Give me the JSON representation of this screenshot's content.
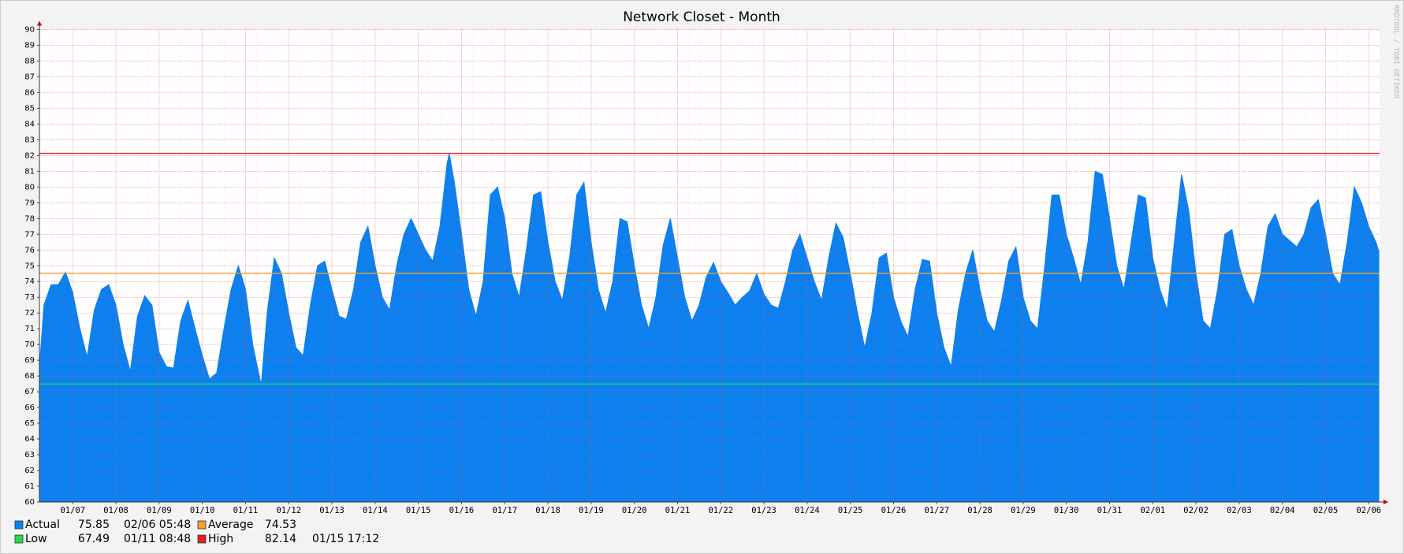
{
  "chart_data": {
    "type": "area",
    "title": "Network Closet - Month",
    "watermark": "RRDTOOL / TOBI OETIKER",
    "x": [
      "01/06 05:30",
      "01/06 08:00",
      "01/06 12:00",
      "01/06 16:00",
      "01/06 20:00",
      "01/07 00:00",
      "01/07 04:00",
      "01/07 08:00",
      "01/07 12:00",
      "01/07 16:00",
      "01/07 20:00",
      "01/08 00:00",
      "01/08 04:00",
      "01/08 08:00",
      "01/08 12:00",
      "01/08 16:00",
      "01/08 20:00",
      "01/09 00:00",
      "01/09 04:00",
      "01/09 08:00",
      "01/09 12:00",
      "01/09 16:00",
      "01/09 20:00",
      "01/10 00:00",
      "01/10 04:00",
      "01/10 08:00",
      "01/10 12:00",
      "01/10 16:00",
      "01/10 20:00",
      "01/11 00:00",
      "01/11 04:00",
      "01/11 08:00",
      "01/11 08:48",
      "01/11 12:00",
      "01/11 16:00",
      "01/11 20:00",
      "01/12 00:00",
      "01/12 04:00",
      "01/12 08:00",
      "01/12 12:00",
      "01/12 16:00",
      "01/12 20:00",
      "01/13 00:00",
      "01/13 04:00",
      "01/13 08:00",
      "01/13 12:00",
      "01/13 16:00",
      "01/13 20:00",
      "01/14 00:00",
      "01/14 04:00",
      "01/14 08:00",
      "01/14 12:00",
      "01/14 16:00",
      "01/14 20:00",
      "01/15 00:00",
      "01/15 04:00",
      "01/15 08:00",
      "01/15 12:00",
      "01/15 16:00",
      "01/15 17:12",
      "01/15 20:00",
      "01/16 00:00",
      "01/16 04:00",
      "01/16 08:00",
      "01/16 12:00",
      "01/16 16:00",
      "01/16 20:00",
      "01/17 00:00",
      "01/17 04:00",
      "01/17 08:00",
      "01/17 12:00",
      "01/17 16:00",
      "01/17 20:00",
      "01/18 00:00",
      "01/18 04:00",
      "01/18 08:00",
      "01/18 12:00",
      "01/18 16:00",
      "01/18 20:00",
      "01/19 00:00",
      "01/19 04:00",
      "01/19 08:00",
      "01/19 12:00",
      "01/19 16:00",
      "01/19 20:00",
      "01/20 00:00",
      "01/20 04:00",
      "01/20 08:00",
      "01/20 12:00",
      "01/20 16:00",
      "01/20 20:00",
      "01/21 00:00",
      "01/21 04:00",
      "01/21 08:00",
      "01/21 12:00",
      "01/21 16:00",
      "01/21 20:00",
      "01/22 00:00",
      "01/22 04:00",
      "01/22 08:00",
      "01/22 12:00",
      "01/22 16:00",
      "01/22 20:00",
      "01/23 00:00",
      "01/23 04:00",
      "01/23 08:00",
      "01/23 12:00",
      "01/23 16:00",
      "01/23 20:00",
      "01/24 00:00",
      "01/24 04:00",
      "01/24 08:00",
      "01/24 12:00",
      "01/24 16:00",
      "01/24 20:00",
      "01/25 00:00",
      "01/25 04:00",
      "01/25 08:00",
      "01/25 12:00",
      "01/25 16:00",
      "01/25 20:00",
      "01/26 00:00",
      "01/26 04:00",
      "01/26 08:00",
      "01/26 12:00",
      "01/26 16:00",
      "01/26 20:00",
      "01/27 00:00",
      "01/27 04:00",
      "01/27 08:00",
      "01/27 12:00",
      "01/27 16:00",
      "01/27 20:00",
      "01/28 00:00",
      "01/28 04:00",
      "01/28 08:00",
      "01/28 12:00",
      "01/28 16:00",
      "01/28 20:00",
      "01/29 00:00",
      "01/29 04:00",
      "01/29 08:00",
      "01/29 12:00",
      "01/29 16:00",
      "01/29 20:00",
      "01/30 00:00",
      "01/30 04:00",
      "01/30 08:00",
      "01/30 12:00",
      "01/30 16:00",
      "01/30 20:00",
      "01/31 00:00",
      "01/31 04:00",
      "01/31 08:00",
      "01/31 12:00",
      "01/31 16:00",
      "01/31 20:00",
      "02/01 00:00",
      "02/01 04:00",
      "02/01 08:00",
      "02/01 12:00",
      "02/01 16:00",
      "02/01 20:00",
      "02/02 00:00",
      "02/02 04:00",
      "02/02 08:00",
      "02/02 12:00",
      "02/02 16:00",
      "02/02 20:00",
      "02/03 00:00",
      "02/03 04:00",
      "02/03 08:00",
      "02/03 12:00",
      "02/03 16:00",
      "02/03 20:00",
      "02/04 00:00",
      "02/04 04:00",
      "02/04 08:00",
      "02/04 12:00",
      "02/04 16:00",
      "02/04 20:00",
      "02/05 00:00",
      "02/05 04:00",
      "02/05 08:00",
      "02/05 12:00",
      "02/05 16:00",
      "02/05 20:00",
      "02/06 00:00",
      "02/06 04:00",
      "02/06 05:48"
    ],
    "series": [
      {
        "name": "Actual",
        "color": "#0b80f0",
        "current": 75.85,
        "current_time": "02/06 05:48",
        "values": [
          68.5,
          72.5,
          73.8,
          73.8,
          74.6,
          73.3,
          71,
          69.2,
          72.2,
          73.5,
          73.8,
          72.5,
          70,
          68.3,
          71.8,
          73.1,
          72.5,
          69.5,
          68.6,
          68.5,
          71.5,
          72.8,
          71,
          69.3,
          67.8,
          68.2,
          71,
          73.5,
          75,
          73.5,
          70,
          67.8,
          67.49,
          72,
          75.5,
          74.5,
          72,
          69.8,
          69.3,
          72.5,
          75,
          75.3,
          73.5,
          71.8,
          71.6,
          73.5,
          76.5,
          77.5,
          75,
          73,
          72.2,
          75,
          77,
          78,
          77,
          76,
          75.3,
          77.5,
          81.5,
          82.14,
          80.3,
          77,
          73.5,
          71.8,
          74,
          79.5,
          80,
          78,
          74.5,
          73,
          76,
          79.5,
          79.7,
          76.5,
          74,
          72.8,
          75.5,
          79.5,
          80.3,
          76.5,
          73.5,
          72,
          74,
          78,
          77.8,
          75,
          72.5,
          71,
          73,
          76.3,
          78,
          75.5,
          73,
          71.5,
          72.5,
          74.3,
          75.2,
          74,
          73.3,
          72.5,
          73,
          73.4,
          74.5,
          73.2,
          72.5,
          72.3,
          74,
          76,
          77,
          75.5,
          74,
          72.8,
          75.5,
          77.7,
          76.8,
          74.5,
          72,
          69.8,
          72,
          75.5,
          75.8,
          73,
          71.5,
          70.5,
          73.5,
          75.4,
          75.3,
          72,
          69.8,
          68.6,
          72.2,
          74.5,
          76,
          73.5,
          71.5,
          70.8,
          72.8,
          75.3,
          76.2,
          73,
          71.5,
          71,
          75,
          79.5,
          79.5,
          77,
          75.5,
          73.8,
          76.5,
          81,
          80.8,
          78,
          75,
          73.5,
          76.5,
          79.5,
          79.3,
          75.5,
          73.5,
          72.2,
          76.5,
          80.8,
          78.5,
          74.5,
          71.5,
          71,
          73.5,
          77,
          77.3,
          75,
          73.5,
          72.5,
          74.5,
          77.5,
          78.3,
          77,
          76.6,
          76.2,
          77,
          78.7,
          79.2,
          77,
          74.5,
          73.8,
          76.5,
          80,
          79,
          77.5,
          76.5,
          75.85
        ]
      }
    ],
    "hrules": [
      {
        "name": "Average",
        "color": "#f0a030",
        "value": 74.53
      },
      {
        "name": "Low",
        "color": "#22dd44",
        "value": 67.49,
        "time": "01/11 08:48"
      },
      {
        "name": "High",
        "color": "#e02020",
        "value": 82.14,
        "time": "01/15 17:12"
      }
    ],
    "xlim": [
      "01/06 05:30",
      "02/06 06:00"
    ],
    "xticks": [
      "01/07",
      "01/08",
      "01/09",
      "01/10",
      "01/11",
      "01/12",
      "01/13",
      "01/14",
      "01/15",
      "01/16",
      "01/17",
      "01/18",
      "01/19",
      "01/20",
      "01/21",
      "01/22",
      "01/23",
      "01/24",
      "01/25",
      "01/26",
      "01/27",
      "01/28",
      "01/29",
      "01/30",
      "01/31",
      "02/01",
      "02/02",
      "02/03",
      "02/04",
      "02/05",
      "02/06"
    ],
    "ylim": [
      60,
      90
    ],
    "yticks": [
      60,
      61,
      62,
      63,
      64,
      65,
      66,
      67,
      68,
      69,
      70,
      71,
      72,
      73,
      74,
      75,
      76,
      77,
      78,
      79,
      80,
      81,
      82,
      83,
      84,
      85,
      86,
      87,
      88,
      89,
      90
    ],
    "grid": true
  }
}
